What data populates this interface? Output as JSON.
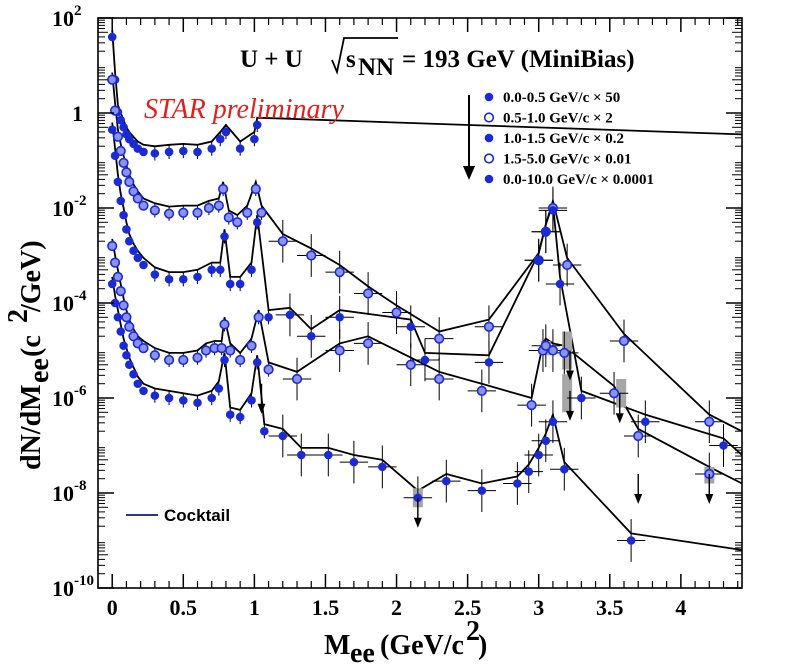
{
  "chart_data": {
    "type": "scatter",
    "title": "U + U",
    "title_energy_prefix": "s",
    "title_energy_sub": "NN",
    "title_energy_value": "= 193 GeV (MiniBias)",
    "annotation": "STAR preliminary",
    "annotation_color": "#e0201c",
    "xlabel_main": "M",
    "xlabel_sub": "ee",
    "xlabel_unit": "(GeV/c",
    "xlabel_sup": "2",
    "xlabel_close": ")",
    "ylabel_main": "dN/dM",
    "ylabel_sub": "ee",
    "ylabel_unit": "(c",
    "ylabel_sup": "2",
    "ylabel_close": "/GeV)",
    "xlim": [
      -0.1,
      4.43
    ],
    "ylim_log10": [
      -10,
      2
    ],
    "x_ticks": [
      {
        "value": 0,
        "label": "0"
      },
      {
        "value": 0.5,
        "label": "0.5"
      },
      {
        "value": 1,
        "label": "1"
      },
      {
        "value": 1.5,
        "label": "1.5"
      },
      {
        "value": 2,
        "label": "2"
      },
      {
        "value": 2.5,
        "label": "2.5"
      },
      {
        "value": 3,
        "label": "3"
      },
      {
        "value": 3.5,
        "label": "3.5"
      },
      {
        "value": 4,
        "label": "4"
      }
    ],
    "y_ticks": [
      {
        "exp": 2,
        "label": "10",
        "sup": "2"
      },
      {
        "exp": 0,
        "label": "1",
        "sup": ""
      },
      {
        "exp": -2,
        "label": "10",
        "sup": "-2"
      },
      {
        "exp": -4,
        "label": "10",
        "sup": "-4"
      },
      {
        "exp": -6,
        "label": "10",
        "sup": "-6"
      },
      {
        "exp": -8,
        "label": "10",
        "sup": "-8"
      },
      {
        "exp": -10,
        "label": "10",
        "sup": "-10"
      }
    ],
    "marker_color": "#1a2bd6",
    "error_color": "#000000",
    "sys_color": "#a6a6a6",
    "legend_position": "top-right",
    "legend_cocktail_label": "Cocktail",
    "series": [
      {
        "name": "0.0-0.5 GeV/c  × 50",
        "filled": true,
        "cocktail_scale": 1.0,
        "points": [
          [
            0.0,
            1.6
          ],
          [
            0.02,
            0.7
          ],
          [
            0.04,
            0.02
          ],
          [
            0.06,
            -0.15
          ],
          [
            0.08,
            -0.3
          ],
          [
            0.1,
            -0.45
          ],
          [
            0.12,
            -0.55
          ],
          [
            0.15,
            -0.65
          ],
          [
            0.18,
            -0.75
          ],
          [
            0.22,
            -0.82
          ],
          [
            0.3,
            -0.85
          ],
          [
            0.4,
            -0.82
          ],
          [
            0.5,
            -0.8
          ],
          [
            0.6,
            -0.82
          ],
          [
            0.7,
            -0.75
          ],
          [
            0.76,
            -0.55
          ],
          [
            0.8,
            -0.4
          ],
          [
            0.9,
            -0.75
          ],
          [
            1.0,
            -0.55
          ],
          [
            1.02,
            -0.25
          ]
        ],
        "upper_limits": []
      },
      {
        "name": "0.5-1.0 GeV/c  × 2",
        "filled": false,
        "cocktail_scale": 1.0,
        "points": [
          [
            0.0,
            0.7
          ],
          [
            0.02,
            0.05
          ],
          [
            0.04,
            -0.5
          ],
          [
            0.06,
            -0.8
          ],
          [
            0.08,
            -1.05
          ],
          [
            0.1,
            -1.25
          ],
          [
            0.12,
            -1.45
          ],
          [
            0.15,
            -1.65
          ],
          [
            0.18,
            -1.8
          ],
          [
            0.22,
            -1.95
          ],
          [
            0.3,
            -2.05
          ],
          [
            0.4,
            -2.12
          ],
          [
            0.5,
            -2.1
          ],
          [
            0.6,
            -2.1
          ],
          [
            0.68,
            -2.0
          ],
          [
            0.75,
            -1.95
          ],
          [
            0.78,
            -1.6
          ],
          [
            0.82,
            -2.2
          ],
          [
            0.88,
            -2.3
          ],
          [
            0.95,
            -2.1
          ],
          [
            1.01,
            -1.6
          ],
          [
            1.05,
            -2.1
          ],
          [
            1.2,
            -2.7
          ],
          [
            1.4,
            -3.0
          ],
          [
            1.6,
            -3.35
          ],
          [
            1.8,
            -3.8
          ],
          [
            2.0,
            -4.2
          ],
          [
            2.3,
            -4.75
          ],
          [
            2.65,
            -4.5
          ],
          [
            3.0,
            -3.1
          ],
          [
            3.05,
            -2.5
          ],
          [
            3.1,
            -2.0
          ],
          [
            3.2,
            -3.2
          ],
          [
            3.6,
            -4.8
          ],
          [
            4.2,
            -6.5
          ]
        ],
        "upper_limits": []
      },
      {
        "name": "1.0-1.5 GeV/c  × 0.2",
        "filled": true,
        "cocktail_scale": 1.0,
        "points": [
          [
            0.0,
            -0.35
          ],
          [
            0.02,
            -0.9
          ],
          [
            0.04,
            -1.45
          ],
          [
            0.06,
            -1.85
          ],
          [
            0.08,
            -2.15
          ],
          [
            0.1,
            -2.45
          ],
          [
            0.12,
            -2.7
          ],
          [
            0.15,
            -2.9
          ],
          [
            0.18,
            -3.05
          ],
          [
            0.22,
            -3.2
          ],
          [
            0.3,
            -3.4
          ],
          [
            0.4,
            -3.5
          ],
          [
            0.5,
            -3.5
          ],
          [
            0.6,
            -3.45
          ],
          [
            0.7,
            -3.3
          ],
          [
            0.76,
            -3.3
          ],
          [
            0.79,
            -2.6
          ],
          [
            0.83,
            -3.6
          ],
          [
            0.9,
            -3.6
          ],
          [
            0.98,
            -3.3
          ],
          [
            1.02,
            -2.3
          ],
          [
            1.1,
            -4.3
          ],
          [
            1.25,
            -4.25
          ],
          [
            1.4,
            -4.7
          ],
          [
            1.6,
            -4.3
          ],
          [
            2.1,
            -4.5
          ],
          [
            2.2,
            -5.2
          ],
          [
            2.65,
            -5.25
          ],
          [
            3.0,
            -3.1
          ],
          [
            3.05,
            -2.5
          ],
          [
            3.1,
            -2.05
          ],
          [
            3.15,
            -3.6
          ],
          [
            3.3,
            -6.0
          ],
          [
            3.75,
            -6.5
          ],
          [
            4.3,
            -7.0
          ]
        ],
        "upper_limits": []
      },
      {
        "name": "1.5-5.0 GeV/c  × 0.01",
        "filled": false,
        "cocktail_scale": 1.0,
        "points": [
          [
            0.0,
            -2.8
          ],
          [
            0.02,
            -3.15
          ],
          [
            0.04,
            -3.45
          ],
          [
            0.06,
            -3.75
          ],
          [
            0.08,
            -4.05
          ],
          [
            0.1,
            -4.3
          ],
          [
            0.12,
            -4.5
          ],
          [
            0.15,
            -4.7
          ],
          [
            0.18,
            -4.85
          ],
          [
            0.22,
            -4.95
          ],
          [
            0.3,
            -5.1
          ],
          [
            0.4,
            -5.2
          ],
          [
            0.5,
            -5.2
          ],
          [
            0.6,
            -5.15
          ],
          [
            0.66,
            -5.0
          ],
          [
            0.72,
            -4.95
          ],
          [
            0.77,
            -4.95
          ],
          [
            0.79,
            -4.45
          ],
          [
            0.83,
            -5.0
          ],
          [
            0.9,
            -5.2
          ],
          [
            0.98,
            -4.9
          ],
          [
            1.03,
            -4.3
          ],
          [
            1.1,
            -5.4
          ],
          [
            1.3,
            -5.6
          ],
          [
            1.6,
            -5.0
          ],
          [
            1.8,
            -4.85
          ],
          [
            2.1,
            -5.3
          ],
          [
            2.3,
            -5.6
          ],
          [
            2.6,
            -5.85
          ],
          [
            2.95,
            -6.15
          ],
          [
            3.03,
            -5.0
          ],
          [
            3.05,
            -4.9
          ],
          [
            3.1,
            -5.0
          ],
          [
            3.18,
            -5.05
          ],
          [
            3.53,
            -5.9
          ],
          [
            3.7,
            -6.8
          ],
          [
            4.2,
            -7.6
          ]
        ],
        "upper_limits": []
      },
      {
        "name": "0.0-10.0 GeV/c  × 0.0001",
        "filled": true,
        "cocktail_scale": 1.0,
        "points": [
          [
            0.0,
            -3.6
          ],
          [
            0.02,
            -4.0
          ],
          [
            0.04,
            -4.3
          ],
          [
            0.06,
            -4.6
          ],
          [
            0.08,
            -4.9
          ],
          [
            0.1,
            -5.1
          ],
          [
            0.12,
            -5.3
          ],
          [
            0.15,
            -5.5
          ],
          [
            0.18,
            -5.7
          ],
          [
            0.22,
            -5.85
          ],
          [
            0.3,
            -5.95
          ],
          [
            0.4,
            -6.0
          ],
          [
            0.5,
            -6.05
          ],
          [
            0.6,
            -6.1
          ],
          [
            0.7,
            -6.0
          ],
          [
            0.75,
            -5.8
          ],
          [
            0.79,
            -5.2
          ],
          [
            0.83,
            -6.35
          ],
          [
            0.9,
            -6.4
          ],
          [
            0.98,
            -6.05
          ],
          [
            1.02,
            -5.25
          ],
          [
            1.07,
            -6.7
          ],
          [
            1.2,
            -6.8
          ],
          [
            1.33,
            -7.2
          ],
          [
            1.52,
            -7.2
          ],
          [
            1.7,
            -7.35
          ],
          [
            1.9,
            -7.45
          ],
          [
            2.15,
            -8.1
          ],
          [
            2.35,
            -7.75
          ],
          [
            2.6,
            -7.95
          ],
          [
            2.85,
            -7.8
          ],
          [
            2.93,
            -7.55
          ],
          [
            3.0,
            -7.2
          ],
          [
            3.05,
            -6.9
          ],
          [
            3.1,
            -6.5
          ],
          [
            3.18,
            -7.5
          ],
          [
            3.65,
            -9.0
          ]
        ],
        "upper_limits": []
      }
    ],
    "upper_limits": [
      [
        1.05,
        -5.7
      ],
      [
        2.15,
        -8.1
      ],
      [
        3.22,
        -5.0
      ],
      [
        3.57,
        -5.9
      ],
      [
        3.7,
        -7.6
      ],
      [
        4.2,
        -7.6
      ],
      [
        3.22,
        -5.85
      ]
    ],
    "sys_bands": [
      [
        3.2,
        -4.6,
        -5.4
      ],
      [
        3.2,
        -5.5,
        -6.3
      ],
      [
        3.58,
        -5.6,
        -6.2
      ],
      [
        2.15,
        -7.9,
        -8.3
      ],
      [
        4.2,
        -7.45,
        -7.8
      ],
      [
        3.05,
        -4.8,
        -5.1
      ]
    ]
  }
}
